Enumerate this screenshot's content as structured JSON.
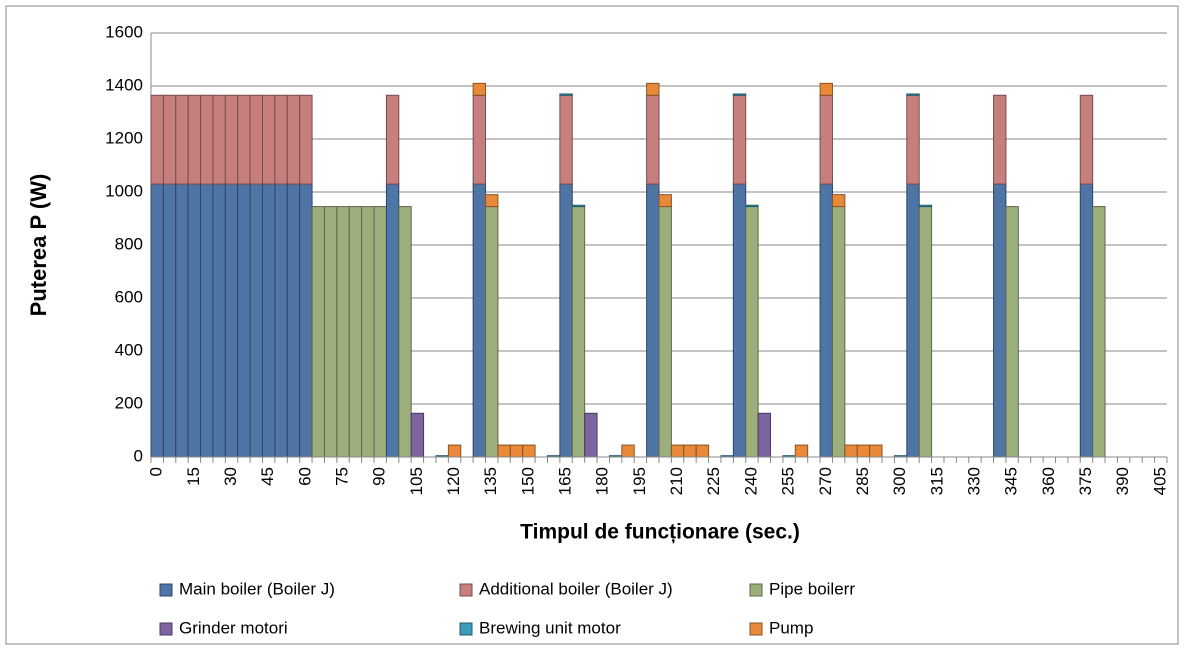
{
  "chart_data": {
    "type": "bar",
    "stacked": true,
    "xlabel": "Timpul de funcționare (sec.)",
    "ylabel": "Puterea P (W)",
    "ylim": [
      0,
      1600
    ],
    "yticks": [
      0,
      200,
      400,
      600,
      800,
      1000,
      1200,
      1400,
      1600
    ],
    "grid": true,
    "categories": [
      "0",
      null,
      null,
      "15",
      null,
      null,
      "30",
      null,
      null,
      "45",
      null,
      null,
      "60",
      null,
      null,
      "75",
      null,
      null,
      "90",
      null,
      null,
      "105",
      null,
      null,
      "120",
      null,
      null,
      "135",
      null,
      null,
      "150",
      null,
      null,
      "165",
      null,
      null,
      "180",
      null,
      null,
      "195",
      null,
      null,
      "210",
      null,
      null,
      "225",
      null,
      null,
      "240",
      null,
      null,
      "255",
      null,
      null,
      "270",
      null,
      null,
      "285",
      null,
      null,
      "300",
      null,
      null,
      "315",
      null,
      null,
      "330",
      null,
      null,
      "345",
      null,
      null,
      "360",
      null,
      null,
      "375",
      null,
      null,
      "390",
      null,
      null,
      "405"
    ],
    "series": [
      {
        "name": "Main boiler (Boiler J)",
        "color": "#4f74a6",
        "values": [
          1030,
          1030,
          1030,
          1030,
          1030,
          1030,
          1030,
          1030,
          1030,
          1030,
          1030,
          1030,
          1030,
          0,
          0,
          0,
          0,
          0,
          0,
          1030,
          0,
          0,
          0,
          0,
          0,
          0,
          1030,
          0,
          0,
          0,
          0,
          0,
          0,
          1030,
          0,
          0,
          0,
          0,
          0,
          0,
          1030,
          0,
          0,
          0,
          0,
          0,
          0,
          1030,
          0,
          0,
          0,
          0,
          0,
          0,
          1030,
          0,
          0,
          0,
          0,
          0,
          0,
          1030,
          0,
          0,
          0,
          0,
          0,
          0,
          1030,
          0,
          0,
          0,
          0,
          0,
          0,
          1030,
          0,
          0,
          0,
          0,
          0,
          0
        ]
      },
      {
        "name": "Additional boiler (Boiler J)",
        "color": "#c77f7e",
        "values": [
          335,
          335,
          335,
          335,
          335,
          335,
          335,
          335,
          335,
          335,
          335,
          335,
          335,
          0,
          0,
          0,
          0,
          0,
          0,
          335,
          0,
          0,
          0,
          0,
          0,
          0,
          335,
          0,
          0,
          0,
          0,
          0,
          0,
          335,
          0,
          0,
          0,
          0,
          0,
          0,
          335,
          0,
          0,
          0,
          0,
          0,
          0,
          335,
          0,
          0,
          0,
          0,
          0,
          0,
          335,
          0,
          0,
          0,
          0,
          0,
          0,
          335,
          0,
          0,
          0,
          0,
          0,
          0,
          335,
          0,
          0,
          0,
          0,
          0,
          0,
          335,
          0,
          0,
          0,
          0,
          0,
          0
        ]
      },
      {
        "name": "Pipe boilerr",
        "color": "#9cae7c",
        "values": [
          0,
          0,
          0,
          0,
          0,
          0,
          0,
          0,
          0,
          0,
          0,
          0,
          0,
          945,
          945,
          945,
          945,
          945,
          945,
          0,
          945,
          0,
          0,
          0,
          0,
          0,
          0,
          945,
          0,
          0,
          0,
          0,
          0,
          0,
          945,
          0,
          0,
          0,
          0,
          0,
          0,
          945,
          0,
          0,
          0,
          0,
          0,
          0,
          945,
          0,
          0,
          0,
          0,
          0,
          0,
          945,
          0,
          0,
          0,
          0,
          0,
          0,
          945,
          0,
          0,
          0,
          0,
          0,
          0,
          945,
          0,
          0,
          0,
          0,
          0,
          0,
          945,
          0,
          0,
          0,
          0,
          0
        ]
      },
      {
        "name": "Grinder motori",
        "color": "#7d63a0",
        "values": [
          0,
          0,
          0,
          0,
          0,
          0,
          0,
          0,
          0,
          0,
          0,
          0,
          0,
          0,
          0,
          0,
          0,
          0,
          0,
          0,
          0,
          165,
          0,
          0,
          0,
          0,
          0,
          0,
          0,
          0,
          0,
          0,
          0,
          0,
          0,
          165,
          0,
          0,
          0,
          0,
          0,
          0,
          0,
          0,
          0,
          0,
          0,
          0,
          0,
          165,
          0,
          0,
          0,
          0,
          0,
          0,
          0,
          0,
          0,
          0,
          0,
          0,
          0,
          0,
          0,
          0,
          0,
          0,
          0,
          0,
          0,
          0,
          0,
          0,
          0,
          0,
          0,
          0,
          0,
          0,
          0,
          0
        ]
      },
      {
        "name": "Brewing unit motor",
        "color": "#3b9bb8",
        "values": [
          0,
          0,
          0,
          0,
          0,
          0,
          0,
          0,
          0,
          0,
          0,
          0,
          0,
          0,
          0,
          0,
          0,
          0,
          0,
          0,
          0,
          0,
          0,
          5,
          0,
          0,
          0,
          0,
          0,
          0,
          0,
          0,
          5,
          5,
          5,
          0,
          0,
          5,
          0,
          0,
          0,
          0,
          0,
          0,
          0,
          0,
          5,
          5,
          5,
          0,
          0,
          5,
          0,
          0,
          0,
          0,
          0,
          0,
          0,
          0,
          5,
          5,
          5,
          0,
          0,
          0,
          0,
          0,
          0,
          0,
          0,
          0,
          0,
          0,
          0,
          0,
          0,
          0,
          0,
          0,
          0,
          0
        ]
      },
      {
        "name": "Pump",
        "color": "#e8893a",
        "values": [
          0,
          0,
          0,
          0,
          0,
          0,
          0,
          0,
          0,
          0,
          0,
          0,
          0,
          0,
          0,
          0,
          0,
          0,
          0,
          0,
          0,
          0,
          0,
          0,
          45,
          0,
          45,
          45,
          45,
          45,
          45,
          0,
          0,
          0,
          0,
          0,
          0,
          0,
          45,
          0,
          45,
          45,
          45,
          45,
          45,
          0,
          0,
          0,
          0,
          0,
          0,
          0,
          45,
          0,
          45,
          45,
          45,
          45,
          45,
          0,
          0,
          0,
          0,
          0,
          0,
          0,
          0,
          0,
          0,
          0,
          0,
          0,
          0,
          0,
          0,
          0,
          0,
          0,
          0,
          0,
          0,
          0
        ]
      }
    ]
  }
}
